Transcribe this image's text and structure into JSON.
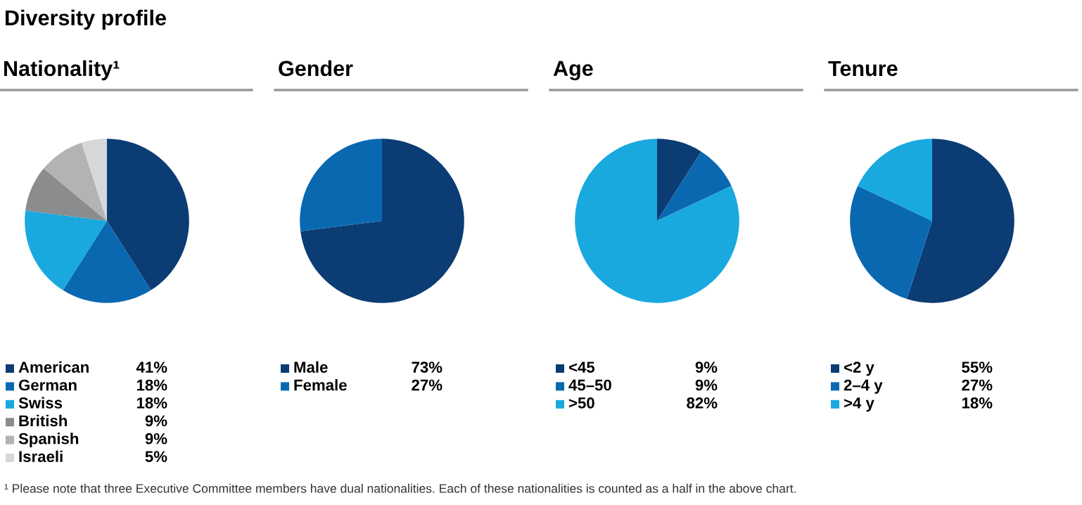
{
  "chart_data": [
    {
      "type": "pie",
      "title": "Nationality¹",
      "categories": [
        "American",
        "German",
        "Swiss",
        "British",
        "Spanish",
        "Israeli"
      ],
      "values": [
        41,
        18,
        18,
        9,
        9,
        5
      ],
      "value_labels": [
        "41%",
        "18%",
        "18%",
        "9%",
        "9%",
        "5%"
      ],
      "colors": [
        "#0b3c73",
        "#0a68b1",
        "#1aa9de",
        "#8a8c8e",
        "#b1b3b5",
        "#d6d7d8"
      ],
      "legend": "bottom",
      "annotations": [
        "Diversity profile",
        "¹ Please note that three Executive Committee members have dual nationalities. Each of these nationalities is counted as a half in the above chart."
      ]
    },
    {
      "type": "pie",
      "title": "Gender",
      "categories": [
        "Male",
        "Female"
      ],
      "values": [
        73,
        27
      ],
      "value_labels": [
        "73%",
        "27%"
      ],
      "colors": [
        "#0b3c73",
        "#0a68b1"
      ],
      "legend": "bottom"
    },
    {
      "type": "pie",
      "title": "Age",
      "categories": [
        "<45",
        "45–50",
        ">50"
      ],
      "values": [
        9,
        9,
        82
      ],
      "value_labels": [
        "9%",
        "9%",
        "82%"
      ],
      "colors": [
        "#0b3c73",
        "#0a68b1",
        "#1aa9de"
      ],
      "legend": "bottom"
    },
    {
      "type": "pie",
      "title": "Tenure",
      "categories": [
        "<2 y",
        "2–4 y",
        ">4 y"
      ],
      "values": [
        55,
        27,
        18
      ],
      "value_labels": [
        "55%",
        "27%",
        "18%"
      ],
      "colors": [
        "#0b3c73",
        "#0a68b1",
        "#1aa9de"
      ],
      "legend": "bottom"
    }
  ]
}
